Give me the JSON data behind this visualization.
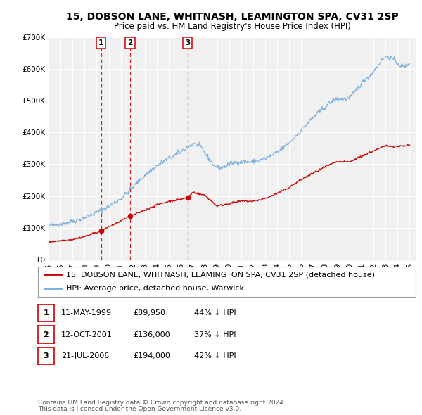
{
  "title": "15, DOBSON LANE, WHITNASH, LEAMINGTON SPA, CV31 2SP",
  "subtitle": "Price paid vs. HM Land Registry's House Price Index (HPI)",
  "red_label": "15, DOBSON LANE, WHITNASH, LEAMINGTON SPA, CV31 2SP (detached house)",
  "blue_label": "HPI: Average price, detached house, Warwick",
  "transactions": [
    {
      "num": 1,
      "date": "11-MAY-1999",
      "price": "£89,950",
      "pct": "44% ↓ HPI",
      "year": 1999.36
    },
    {
      "num": 2,
      "date": "12-OCT-2001",
      "price": "£136,000",
      "pct": "37% ↓ HPI",
      "year": 2001.78
    },
    {
      "num": 3,
      "date": "21-JUL-2006",
      "price": "£194,000",
      "pct": "42% ↓ HPI",
      "year": 2006.55
    }
  ],
  "transaction_values": [
    89950,
    136000,
    194000
  ],
  "footer1": "Contains HM Land Registry data © Crown copyright and database right 2024.",
  "footer2": "This data is licensed under the Open Government Licence v3.0.",
  "ylim": [
    0,
    700000
  ],
  "yticks": [
    0,
    100000,
    200000,
    300000,
    400000,
    500000,
    600000,
    700000
  ],
  "ytick_labels": [
    "£0",
    "£100K",
    "£200K",
    "£300K",
    "£400K",
    "£500K",
    "£600K",
    "£700K"
  ],
  "xlim_min": 1995,
  "xlim_max": 2025.5,
  "red_color": "#cc0000",
  "blue_color": "#7aaddc",
  "plot_bg": "#f0f0f0",
  "grid_color": "#ffffff",
  "title_fontsize": 10,
  "subtitle_fontsize": 8.5,
  "tick_fontsize": 7.5,
  "legend_fontsize": 8,
  "table_fontsize": 8,
  "footer_fontsize": 6.5
}
